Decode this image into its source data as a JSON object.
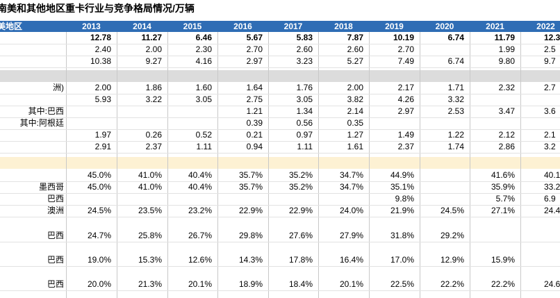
{
  "title": "南美和其他地区重卡行业与竞争格局情况/万辆",
  "table": {
    "header_label": "美地区",
    "years": [
      "2013",
      "2014",
      "2015",
      "2016",
      "2017",
      "2018",
      "2019",
      "2020",
      "2021",
      "2022"
    ],
    "rows": [
      {
        "label": "",
        "cells": [
          "12.78",
          "11.27",
          "6.46",
          "5.67",
          "5.83",
          "7.87",
          "10.19",
          "6.74",
          "11.79",
          "12.3"
        ]
      },
      {
        "label": "",
        "cells": [
          "2.40",
          "2.00",
          "2.30",
          "2.70",
          "2.60",
          "2.60",
          "2.70",
          "",
          "1.99",
          "2.5"
        ]
      },
      {
        "label": "",
        "cells": [
          "10.38",
          "9.27",
          "4.16",
          "2.97",
          "3.23",
          "5.27",
          "7.49",
          "6.74",
          "9.80",
          "9.7"
        ]
      },
      {
        "label": "洲)",
        "cells": [
          "2.00",
          "1.86",
          "1.60",
          "1.64",
          "1.76",
          "2.00",
          "2.17",
          "1.71",
          "2.32",
          "2.7"
        ]
      },
      {
        "label": "",
        "cells": [
          "5.93",
          "3.22",
          "3.05",
          "2.75",
          "3.05",
          "3.82",
          "4.26",
          "3.32",
          "",
          ""
        ]
      },
      {
        "label": "其中:巴西",
        "cells": [
          "",
          "",
          "",
          "1.21",
          "1.34",
          "2.14",
          "2.97",
          "2.53",
          "3.47",
          "3.6"
        ]
      },
      {
        "label": "其中:阿根廷",
        "cells": [
          "",
          "",
          "",
          "0.39",
          "0.56",
          "0.35",
          "",
          "",
          "",
          ""
        ]
      },
      {
        "label": "",
        "cells": [
          "1.97",
          "0.26",
          "0.52",
          "0.21",
          "0.97",
          "1.27",
          "1.49",
          "1.22",
          "2.12",
          "2.1"
        ]
      },
      {
        "label": "",
        "cells": [
          "2.91",
          "2.37",
          "1.11",
          "0.94",
          "1.11",
          "1.61",
          "2.37",
          "1.74",
          "2.86",
          "3.2"
        ]
      },
      {
        "label": "",
        "cells": [
          "45.0%",
          "41.0%",
          "40.4%",
          "35.7%",
          "35.2%",
          "34.7%",
          "44.9%",
          "",
          "41.6%",
          "40.1"
        ]
      },
      {
        "label": "墨西哥",
        "cells": [
          "45.0%",
          "41.0%",
          "40.4%",
          "35.7%",
          "35.2%",
          "34.7%",
          "35.1%",
          "",
          "35.9%",
          "33.2"
        ]
      },
      {
        "label": "巴西",
        "cells": [
          "",
          "",
          "",
          "",
          "",
          "",
          "9.8%",
          "",
          "5.7%",
          "6.9"
        ]
      },
      {
        "label": "澳洲",
        "cells": [
          "24.5%",
          "23.5%",
          "23.2%",
          "22.9%",
          "22.9%",
          "24.0%",
          "21.9%",
          "24.5%",
          "27.1%",
          "24.4"
        ]
      },
      {
        "label": "巴西",
        "cells": [
          "24.7%",
          "25.8%",
          "26.7%",
          "29.8%",
          "27.6%",
          "27.9%",
          "31.8%",
          "29.2%",
          "",
          ""
        ]
      },
      {
        "label": "巴西",
        "cells": [
          "19.0%",
          "15.3%",
          "12.6%",
          "14.3%",
          "17.8%",
          "16.4%",
          "17.0%",
          "12.9%",
          "15.9%",
          ""
        ]
      },
      {
        "label": "巴西",
        "cells": [
          "20.0%",
          "21.3%",
          "20.1%",
          "18.9%",
          "18.4%",
          "20.1%",
          "22.5%",
          "22.2%",
          "22.2%",
          "24.6"
        ]
      }
    ]
  }
}
